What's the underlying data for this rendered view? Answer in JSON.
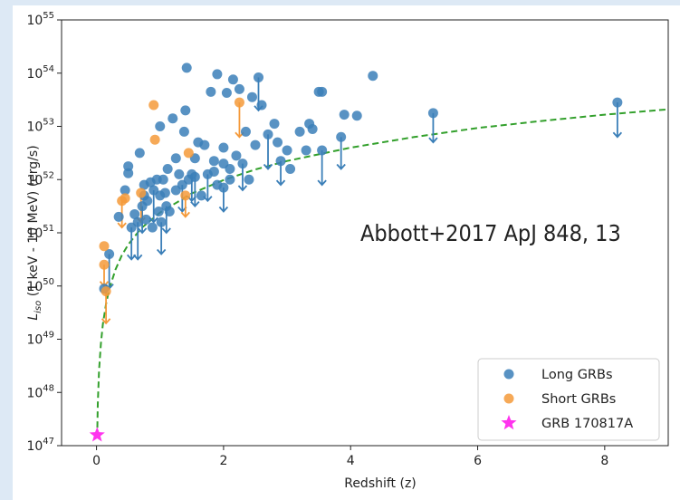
{
  "chart_data": {
    "type": "scatter",
    "xlabel": "Redshift (z)",
    "ylabel_main": "L",
    "ylabel_sub": "iso",
    "ylabel_rest": " (1 keV - 10 MeV) (erg/s)",
    "xlim": [
      -0.55,
      9.0
    ],
    "ylim_log10": [
      47,
      55
    ],
    "xticks": [
      "0",
      "2",
      "4",
      "6",
      "8"
    ],
    "xtick_values": [
      0,
      2,
      4,
      6,
      8
    ],
    "ytick_exponents": [
      47,
      48,
      49,
      50,
      51,
      52,
      53,
      54,
      55
    ],
    "ytick_base": "10",
    "ytick_labels": [
      "47",
      "48",
      "49",
      "50",
      "51",
      "52",
      "53",
      "54",
      "55"
    ],
    "annotation": "Abbott+2017 ApJ 848, 13",
    "legend_position": "lower-right",
    "colors": {
      "long": "#3b7fb8",
      "short": "#f59a3a",
      "grb170817a": "#ff33ee",
      "curve": "#33a02c"
    },
    "series": [
      {
        "name": "Long GRBs",
        "points": [
          [
            0.2,
            50.6
          ],
          [
            0.12,
            49.95
          ],
          [
            0.35,
            51.3
          ],
          [
            0.45,
            51.8
          ],
          [
            0.5,
            52.25
          ],
          [
            0.5,
            52.12
          ],
          [
            0.55,
            51.1
          ],
          [
            0.6,
            51.35
          ],
          [
            0.65,
            51.2
          ],
          [
            0.68,
            52.5
          ],
          [
            0.72,
            51.5
          ],
          [
            0.75,
            51.9
          ],
          [
            0.75,
            51.7
          ],
          [
            0.78,
            51.25
          ],
          [
            0.8,
            51.6
          ],
          [
            0.85,
            51.95
          ],
          [
            0.88,
            51.1
          ],
          [
            0.9,
            51.8
          ],
          [
            0.95,
            52.0
          ],
          [
            0.98,
            51.4
          ],
          [
            1.0,
            51.7
          ],
          [
            1.02,
            51.2
          ],
          [
            1.05,
            52.0
          ],
          [
            1.08,
            51.75
          ],
          [
            1.1,
            51.5
          ],
          [
            1.12,
            52.2
          ],
          [
            1.15,
            51.4
          ],
          [
            1.0,
            53.0
          ],
          [
            1.2,
            53.15
          ],
          [
            1.25,
            51.8
          ],
          [
            1.25,
            52.4
          ],
          [
            1.3,
            52.1
          ],
          [
            1.35,
            51.9
          ],
          [
            1.38,
            52.9
          ],
          [
            1.4,
            53.3
          ],
          [
            1.42,
            54.1
          ],
          [
            1.45,
            52.0
          ],
          [
            1.5,
            52.1
          ],
          [
            1.55,
            52.05
          ],
          [
            1.55,
            52.4
          ],
          [
            1.6,
            52.7
          ],
          [
            1.65,
            51.7
          ],
          [
            1.7,
            52.65
          ],
          [
            1.75,
            52.1
          ],
          [
            1.8,
            53.65
          ],
          [
            1.85,
            52.15
          ],
          [
            1.85,
            52.35
          ],
          [
            1.9,
            53.98
          ],
          [
            1.9,
            51.9
          ],
          [
            2.0,
            52.6
          ],
          [
            2.0,
            52.3
          ],
          [
            2.0,
            51.85
          ],
          [
            2.05,
            53.63
          ],
          [
            2.1,
            52.2
          ],
          [
            2.1,
            52.0
          ],
          [
            2.15,
            53.88
          ],
          [
            2.2,
            52.45
          ],
          [
            2.25,
            53.7
          ],
          [
            2.3,
            52.3
          ],
          [
            2.35,
            52.9
          ],
          [
            2.4,
            52.0
          ],
          [
            2.45,
            53.55
          ],
          [
            2.5,
            52.65
          ],
          [
            2.55,
            53.92
          ],
          [
            2.6,
            53.4
          ],
          [
            2.7,
            52.85
          ],
          [
            2.8,
            53.05
          ],
          [
            2.85,
            52.7
          ],
          [
            2.9,
            52.35
          ],
          [
            3.0,
            52.55
          ],
          [
            3.05,
            52.2
          ],
          [
            3.2,
            52.9
          ],
          [
            3.3,
            52.55
          ],
          [
            3.35,
            53.05
          ],
          [
            3.4,
            52.95
          ],
          [
            3.5,
            53.65
          ],
          [
            3.55,
            52.55
          ],
          [
            3.55,
            53.65
          ],
          [
            3.85,
            52.8
          ],
          [
            3.9,
            53.22
          ],
          [
            4.1,
            53.2
          ],
          [
            4.35,
            53.95
          ],
          [
            5.3,
            53.25
          ],
          [
            8.2,
            53.45
          ]
        ],
        "upper_limit_arrows": [
          [
            0.2,
            50.6,
            49.95
          ],
          [
            0.55,
            51.1,
            50.5
          ],
          [
            0.65,
            51.2,
            50.5
          ],
          [
            0.72,
            51.5,
            51.0
          ],
          [
            0.9,
            51.8,
            51.2
          ],
          [
            1.02,
            51.2,
            50.6
          ],
          [
            1.1,
            51.5,
            51.0
          ],
          [
            1.35,
            51.9,
            51.4
          ],
          [
            1.5,
            52.1,
            51.6
          ],
          [
            1.55,
            52.05,
            51.5
          ],
          [
            1.75,
            52.1,
            51.6
          ],
          [
            2.0,
            51.85,
            51.4
          ],
          [
            2.3,
            52.3,
            51.8
          ],
          [
            2.55,
            53.92,
            53.3
          ],
          [
            2.7,
            52.85,
            52.2
          ],
          [
            2.9,
            52.35,
            51.9
          ],
          [
            3.55,
            52.55,
            51.9
          ],
          [
            3.85,
            52.8,
            52.2
          ],
          [
            5.3,
            53.25,
            52.7
          ],
          [
            8.2,
            53.45,
            52.8
          ]
        ]
      },
      {
        "name": "Short GRBs",
        "points": [
          [
            0.12,
            50.4
          ],
          [
            0.15,
            49.9
          ],
          [
            0.12,
            50.75
          ],
          [
            0.4,
            51.6
          ],
          [
            0.45,
            51.65
          ],
          [
            0.7,
            51.75
          ],
          [
            0.9,
            53.4
          ],
          [
            0.92,
            52.75
          ],
          [
            1.4,
            51.7
          ],
          [
            1.45,
            52.5
          ],
          [
            2.25,
            53.45
          ]
        ],
        "upper_limit_arrows": [
          [
            0.12,
            50.4,
            50.0
          ],
          [
            0.15,
            49.9,
            49.3
          ],
          [
            0.4,
            51.6,
            51.1
          ],
          [
            0.7,
            51.75,
            51.2
          ],
          [
            1.4,
            51.7,
            51.3
          ],
          [
            2.25,
            53.45,
            52.8
          ]
        ]
      },
      {
        "name": "GRB 170817A",
        "points": [
          [
            0.0098,
            47.2
          ]
        ]
      }
    ],
    "detection_limit_curve": {
      "style": "dashed",
      "points": [
        [
          0.01,
          47.15
        ],
        [
          0.02,
          47.78
        ],
        [
          0.04,
          48.42
        ],
        [
          0.07,
          48.93
        ],
        [
          0.1,
          49.28
        ],
        [
          0.15,
          49.66
        ],
        [
          0.2,
          49.94
        ],
        [
          0.3,
          50.31
        ],
        [
          0.4,
          50.58
        ],
        [
          0.5,
          50.78
        ],
        [
          0.7,
          51.08
        ],
        [
          1.0,
          51.38
        ],
        [
          1.5,
          51.74
        ],
        [
          2.0,
          51.99
        ],
        [
          2.5,
          52.19
        ],
        [
          3.0,
          52.35
        ],
        [
          4.0,
          52.6
        ],
        [
          5.0,
          52.8
        ],
        [
          6.0,
          52.97
        ],
        [
          7.0,
          53.1
        ],
        [
          8.0,
          53.22
        ],
        [
          9.0,
          53.32
        ]
      ]
    }
  }
}
